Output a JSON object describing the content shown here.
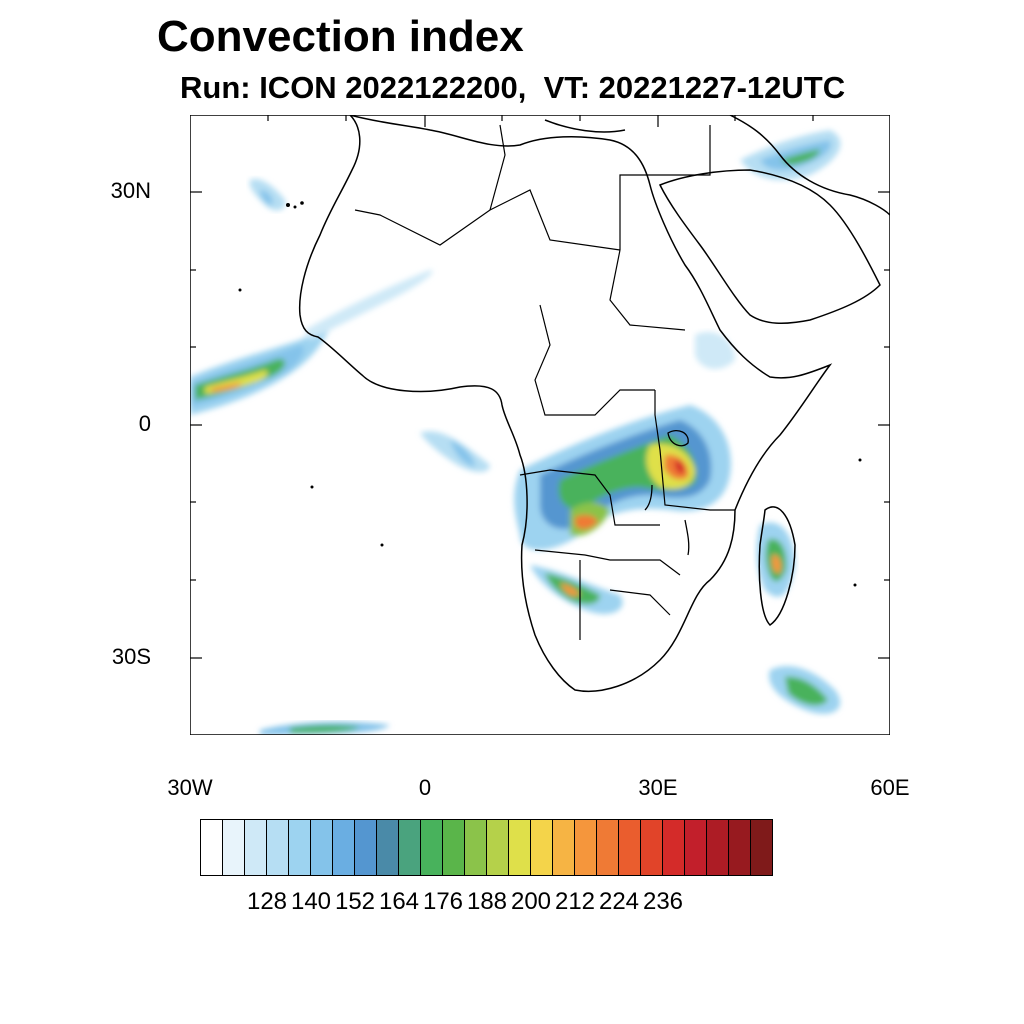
{
  "title": "Convection index",
  "subtitle": {
    "run": "Run: ICON 2022122200,",
    "vt": "VT: 20221227-12UTC"
  },
  "axes": {
    "lat_labels": [
      "30N",
      "0",
      "30S"
    ],
    "lon_labels": [
      "30W",
      "0",
      "30E",
      "60E"
    ]
  },
  "colorbar": {
    "colors": [
      "#ffffff",
      "#e8f4fb",
      "#cfe9f7",
      "#b6def3",
      "#9dd3f0",
      "#84c3ea",
      "#6aaee2",
      "#5496d0",
      "#4a8aa8",
      "#4aa37e",
      "#48b25c",
      "#5ab54a",
      "#8bc34a",
      "#b5d14a",
      "#dfe04a",
      "#f4d44a",
      "#f6b444",
      "#f5963c",
      "#ef7a35",
      "#ea5d2e",
      "#e14429",
      "#d42b29",
      "#c21f2b",
      "#ad1c25",
      "#971a1f",
      "#7f1a1a"
    ],
    "labels": [
      "128",
      "140",
      "152",
      "164",
      "176",
      "188",
      "200",
      "212",
      "224",
      "236"
    ]
  },
  "map": {
    "projection": "equirectangular",
    "lon_range": [
      -30,
      60
    ],
    "lat_range": [
      -40,
      40
    ]
  }
}
